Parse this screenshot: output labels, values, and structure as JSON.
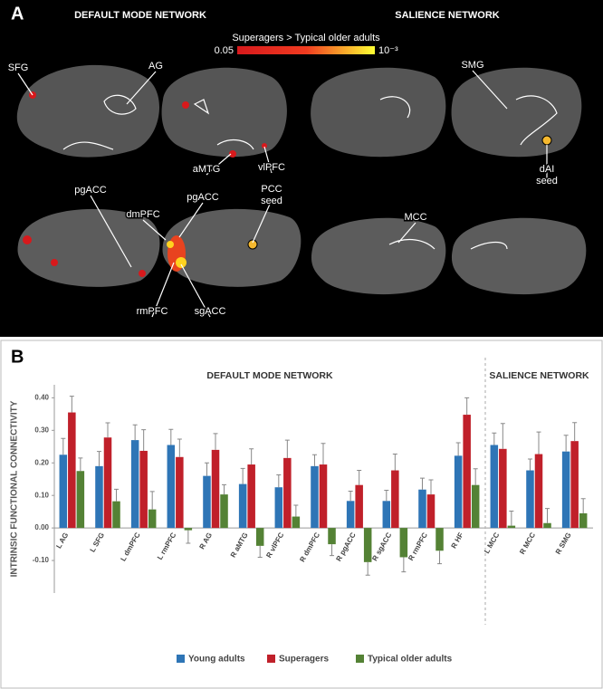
{
  "panel_a": {
    "label": "A",
    "titles": [
      "DEFAULT MODE NETWORK",
      "SALIENCE NETWORK"
    ],
    "colorbar": {
      "title": "Superagers > Typical older adults",
      "min_label": "0.05",
      "max_label": "10⁻³"
    },
    "regions": [
      {
        "lines": [
          "SFG"
        ]
      },
      {
        "lines": [
          "AG"
        ]
      },
      {
        "lines": [
          "aMTG"
        ]
      },
      {
        "lines": [
          "vlPFC"
        ]
      },
      {
        "lines": [
          "pgACC"
        ]
      },
      {
        "lines": [
          "dmPFC"
        ]
      },
      {
        "lines": [
          "pgACC"
        ]
      },
      {
        "lines": [
          "PCC",
          "seed"
        ]
      },
      {
        "lines": [
          "rmPFC"
        ]
      },
      {
        "lines": [
          "sgACC"
        ]
      },
      {
        "lines": [
          "SMG"
        ]
      },
      {
        "lines": [
          "dAI",
          "seed"
        ]
      },
      {
        "lines": [
          "MCC"
        ]
      }
    ]
  },
  "chart_data": {
    "type": "bar",
    "panel_label": "B",
    "y_label": "INTRINSIC FUNCTIONAL CONNECTIVITY",
    "annotations": [
      "DEFAULT MODE NETWORK",
      "SALIENCE NETWORK"
    ],
    "categories": [
      "L AG",
      "L SFG",
      "L dmPFC",
      "L rmPFC",
      "R AG",
      "R aMTG",
      "R vlPFC",
      "R dmPFC",
      "R pgACC",
      "R sgACC",
      "R rmPFC",
      "R HF",
      "L MCC",
      "R MCC",
      "R SMG"
    ],
    "series": [
      {
        "name": "Young adults",
        "color": "#2e75b6",
        "values": [
          0.225,
          0.19,
          0.27,
          0.255,
          0.16,
          0.135,
          0.125,
          0.19,
          0.083,
          0.083,
          0.118,
          0.222,
          0.255,
          0.177,
          0.235
        ],
        "errors": [
          0.05,
          0.045,
          0.047,
          0.048,
          0.04,
          0.048,
          0.038,
          0.035,
          0.03,
          0.033,
          0.035,
          0.04,
          0.037,
          0.035,
          0.05
        ]
      },
      {
        "name": "Superagers",
        "color": "#c0202a",
        "values": [
          0.355,
          0.278,
          0.237,
          0.218,
          0.24,
          0.195,
          0.215,
          0.195,
          0.132,
          0.177,
          0.103,
          0.348,
          0.243,
          0.227,
          0.267
        ],
        "errors": [
          0.05,
          0.045,
          0.065,
          0.055,
          0.05,
          0.048,
          0.055,
          0.065,
          0.045,
          0.05,
          0.045,
          0.052,
          0.078,
          0.068,
          0.057
        ]
      },
      {
        "name": "Typical older adults",
        "color": "#548235",
        "values": [
          0.175,
          0.082,
          0.057,
          -0.007,
          0.103,
          -0.055,
          0.035,
          -0.05,
          -0.105,
          -0.09,
          -0.07,
          0.132,
          0.007,
          0.015,
          0.045
        ],
        "errors": [
          0.04,
          0.037,
          0.055,
          0.04,
          0.03,
          0.035,
          0.035,
          0.035,
          0.04,
          0.045,
          0.04,
          0.05,
          0.045,
          0.045,
          0.045
        ]
      }
    ],
    "ylim": [
      -0.2,
      0.44
    ],
    "yticks": [
      {
        "value": -0.1,
        "label": "-0.10"
      },
      {
        "value": 0,
        "label": "0.00"
      },
      {
        "value": 0.1,
        "label": "0.10"
      },
      {
        "value": 0.2,
        "label": "0.20"
      },
      {
        "value": 0.3,
        "label": "0.30"
      },
      {
        "value": 0.4,
        "label": "0.40"
      }
    ],
    "grid": false
  }
}
